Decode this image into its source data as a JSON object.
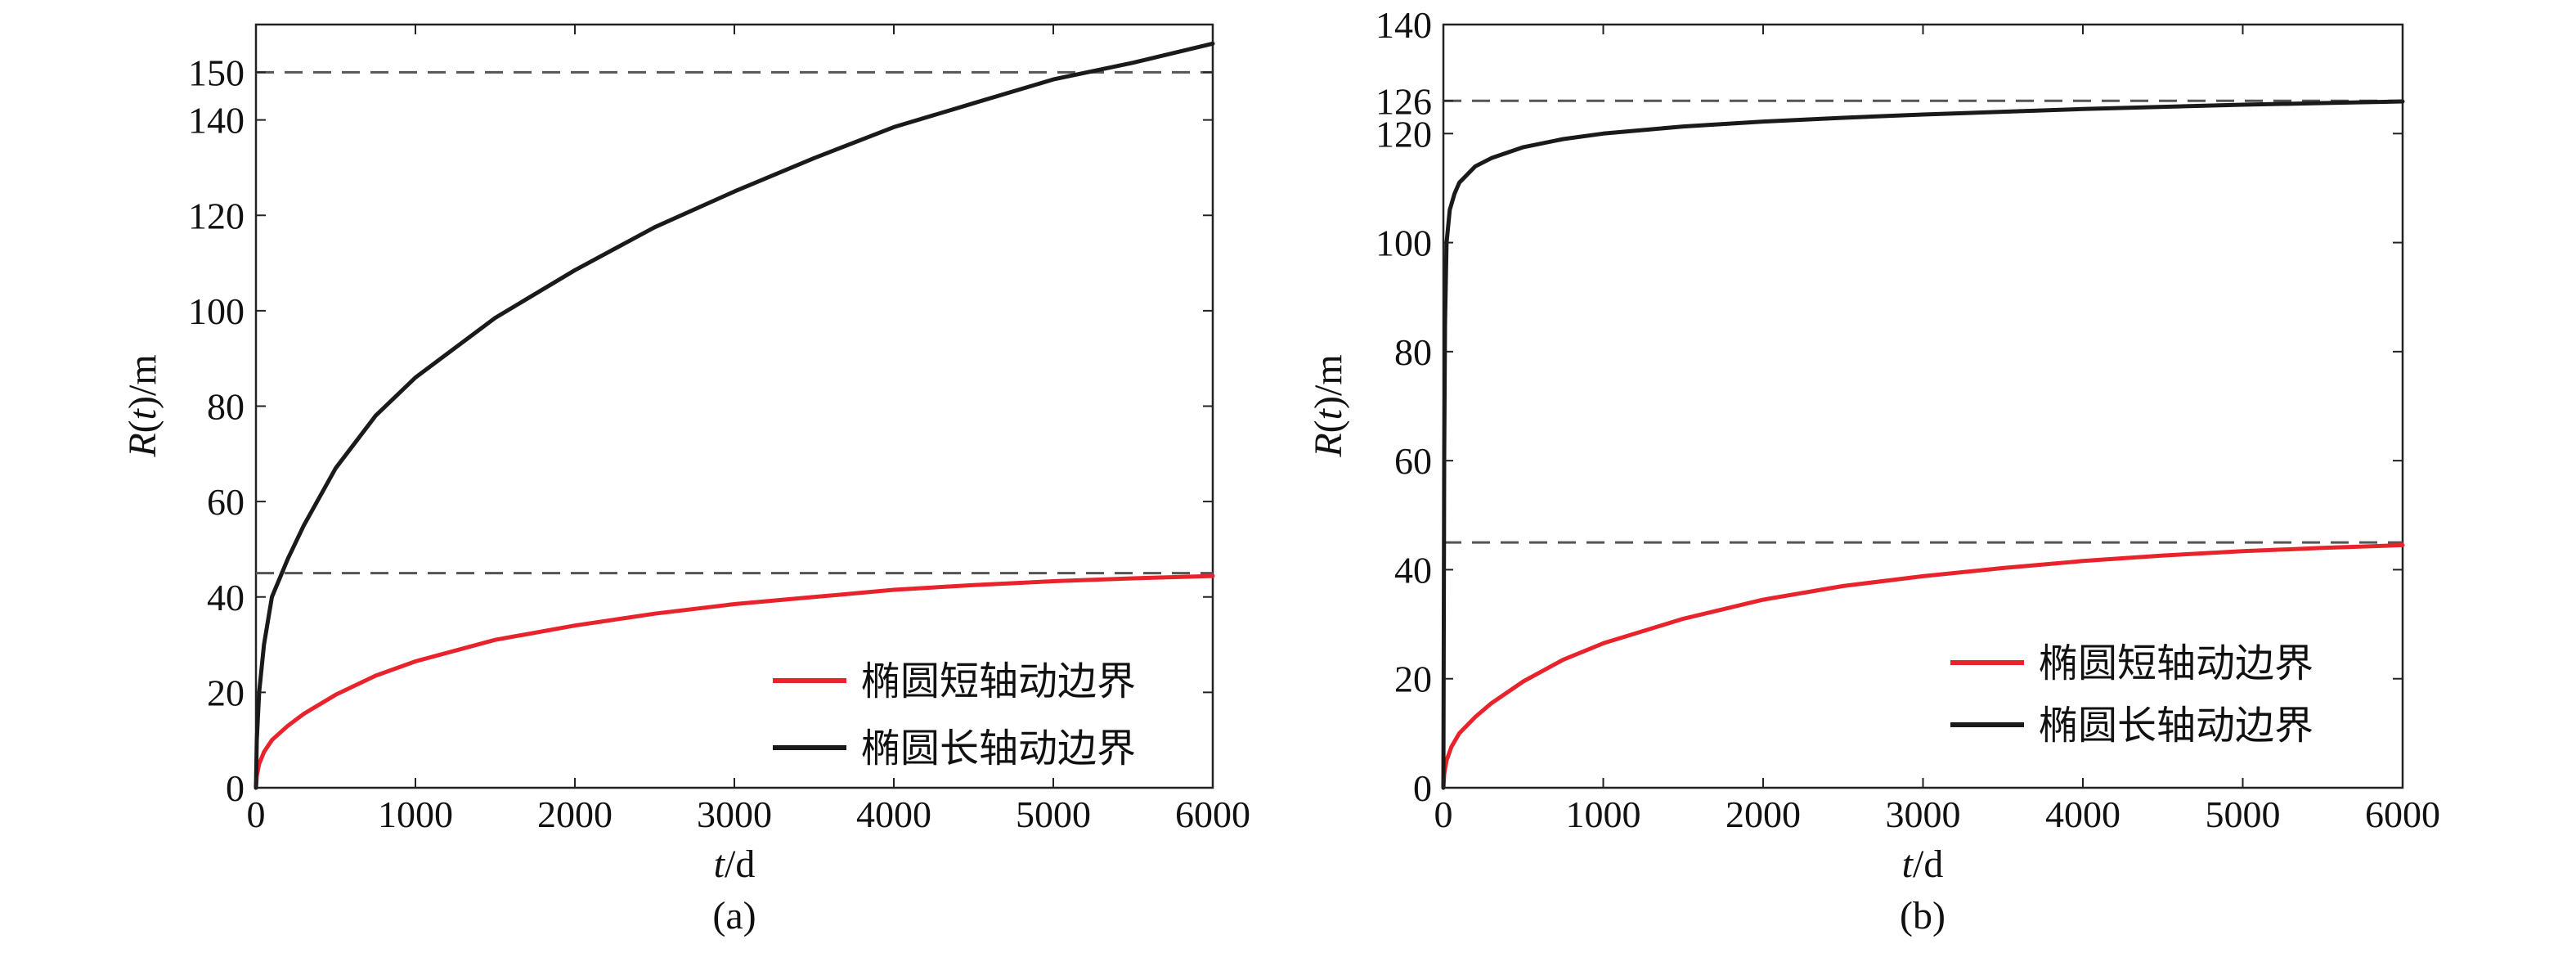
{
  "chart_data": [
    {
      "type": "line",
      "panel_label": "(a)",
      "xlabel": {
        "var": "t",
        "unit": "/d"
      },
      "ylabel": {
        "var": "R",
        "arg": "t",
        "unit": "/m"
      },
      "xlim": [
        0,
        6000
      ],
      "ylim": [
        0,
        160
      ],
      "xticks": [
        0,
        1000,
        2000,
        3000,
        4000,
        5000,
        6000
      ],
      "yticks": [
        0,
        20,
        40,
        60,
        80,
        100,
        120,
        140,
        150
      ],
      "grid": false,
      "legend_position": "lower-right",
      "reference_lines": [
        45,
        150
      ],
      "series": [
        {
          "name": "椭圆短轴动边界",
          "color": "#e8232c",
          "x": [
            0,
            5,
            20,
            50,
            100,
            200,
            300,
            500,
            750,
            1000,
            1500,
            2000,
            2500,
            3000,
            3500,
            4000,
            4500,
            5000,
            5500,
            6000
          ],
          "y": [
            0,
            2.5,
            5,
            7.5,
            10,
            13,
            15.5,
            19.5,
            23.5,
            26.5,
            31,
            34,
            36.5,
            38.5,
            40,
            41.5,
            42.5,
            43.3,
            43.9,
            44.4
          ]
        },
        {
          "name": "椭圆长轴动边界",
          "color": "#1a1a1a",
          "x": [
            0,
            5,
            20,
            50,
            100,
            150,
            200,
            300,
            500,
            750,
            1000,
            1500,
            2000,
            2500,
            3000,
            3500,
            4000,
            4500,
            5000,
            5500,
            6000
          ],
          "y": [
            0,
            10,
            20,
            30,
            40,
            44,
            48,
            55,
            67,
            78,
            86,
            98.5,
            108.5,
            117.5,
            125,
            132,
            138.5,
            143.5,
            148.5,
            152,
            156
          ]
        }
      ]
    },
    {
      "type": "line",
      "panel_label": "(b)",
      "xlabel": {
        "var": "t",
        "unit": "/d"
      },
      "ylabel": {
        "var": "R",
        "arg": "t",
        "unit": "/m"
      },
      "xlim": [
        0,
        6000
      ],
      "ylim": [
        0,
        140
      ],
      "xticks": [
        0,
        1000,
        2000,
        3000,
        4000,
        5000,
        6000
      ],
      "yticks": [
        0,
        20,
        40,
        60,
        80,
        100,
        120,
        126,
        140
      ],
      "grid": false,
      "legend_position": "lower-right",
      "reference_lines": [
        45,
        126
      ],
      "series": [
        {
          "name": "椭圆短轴动边界",
          "color": "#e8232c",
          "x": [
            0,
            5,
            20,
            50,
            100,
            200,
            300,
            500,
            750,
            1000,
            1500,
            2000,
            2500,
            3000,
            3500,
            4000,
            4500,
            5000,
            5500,
            6000
          ],
          "y": [
            0,
            2.5,
            5,
            7.5,
            10,
            13,
            15.5,
            19.5,
            23.5,
            26.5,
            31,
            34.5,
            37,
            38.8,
            40.3,
            41.6,
            42.6,
            43.4,
            44,
            44.5
          ]
        },
        {
          "name": "椭圆长轴动边界",
          "color": "#1a1a1a",
          "x": [
            0,
            5,
            10,
            20,
            40,
            70,
            100,
            200,
            300,
            500,
            750,
            1000,
            1500,
            2000,
            2500,
            3000,
            3500,
            4000,
            4500,
            5000,
            5500,
            6000
          ],
          "y": [
            0,
            60,
            85,
            100,
            106,
            109,
            111,
            114,
            115.5,
            117.5,
            119,
            120,
            121.3,
            122.2,
            122.9,
            123.5,
            124,
            124.5,
            124.9,
            125.3,
            125.6,
            125.9
          ]
        }
      ]
    }
  ]
}
